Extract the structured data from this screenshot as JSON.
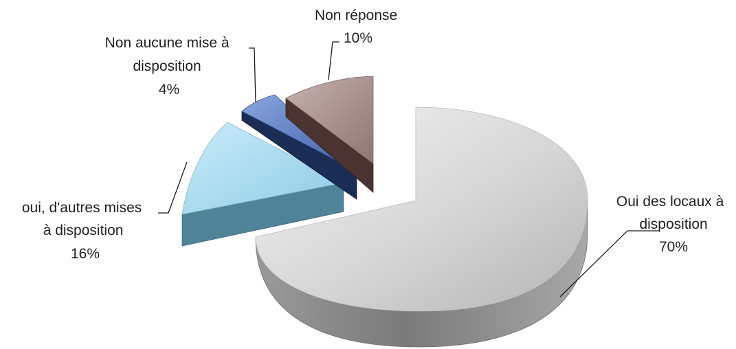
{
  "chart_data": {
    "type": "pie",
    "style": "3d-exploded",
    "title": "",
    "slices": [
      {
        "key": "locaux",
        "lines": [
          "Oui des locaux à",
          "disposition"
        ],
        "pct_label": "70%",
        "value": 70,
        "color": "#c8c8c8",
        "side_color": "#8c8c8c"
      },
      {
        "key": "autres",
        "lines": [
          "oui, d'autres mises",
          "à disposition"
        ],
        "pct_label": "16%",
        "value": 16,
        "color": "#a9dcf0",
        "side_color": "#4f8397"
      },
      {
        "key": "aucune",
        "lines": [
          "Non aucune mise à",
          "disposition"
        ],
        "pct_label": "4%",
        "value": 4,
        "color": "#5a7cc0",
        "side_color": "#1a2d55"
      },
      {
        "key": "nonrep",
        "lines": [
          "Non réponse"
        ],
        "pct_label": "10%",
        "value": 10,
        "color": "#a48c88",
        "side_color": "#4a3330"
      }
    ],
    "legend": "none"
  }
}
